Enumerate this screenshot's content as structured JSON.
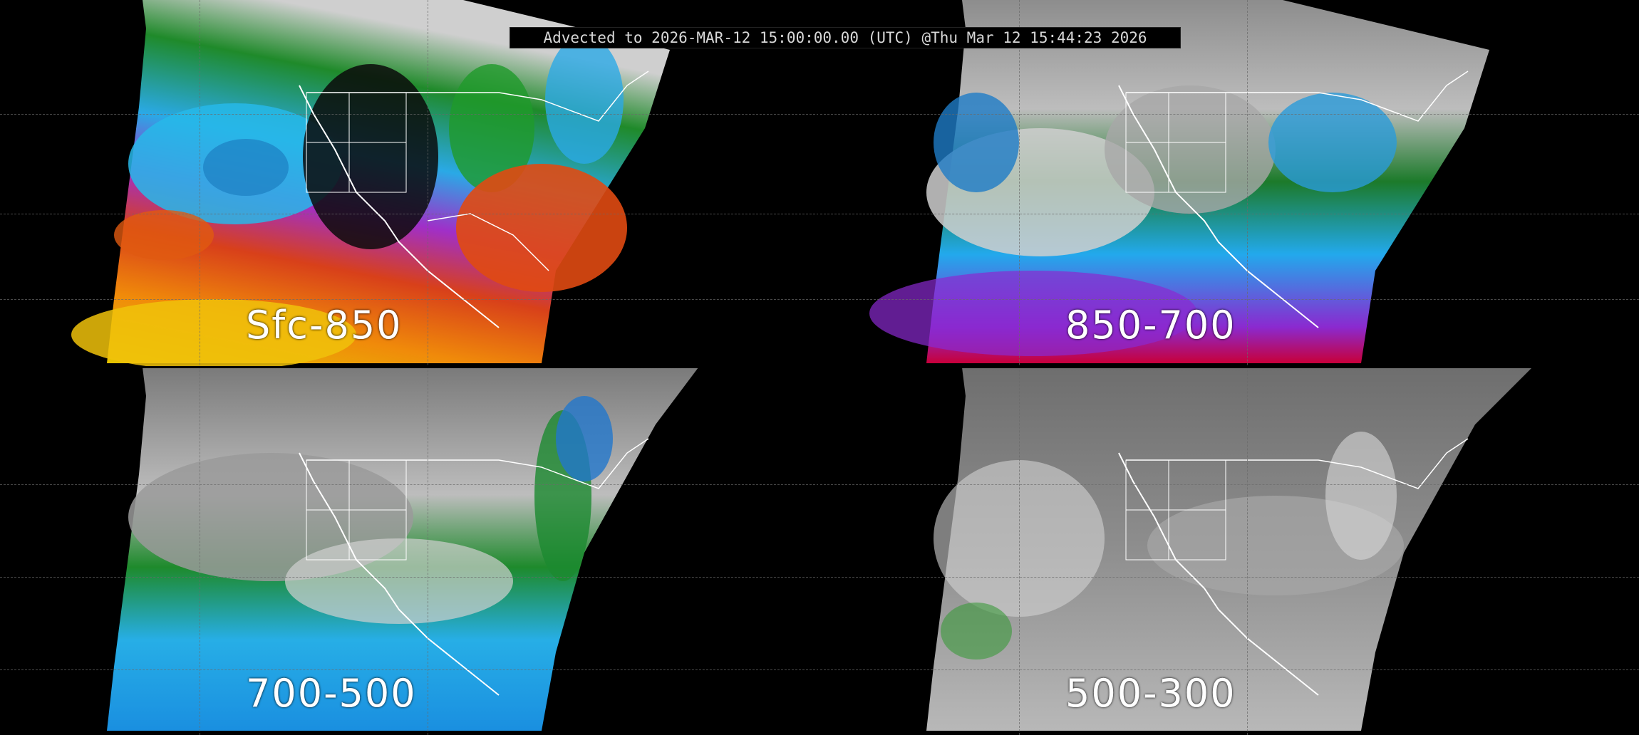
{
  "header": {
    "text": "Advected to 2026-MAR-12 15:00:00.00 (UTC) @Thu Mar 12 15:44:23 2026"
  },
  "panels": [
    {
      "label": "Sfc-850",
      "scheme": "warm"
    },
    {
      "label": "850-700",
      "scheme": "cool"
    },
    {
      "label": "700-500",
      "scheme": "greenblue"
    },
    {
      "label": "500-300",
      "scheme": "gray"
    }
  ],
  "colors": {
    "background": "#000000",
    "coastline": "#ffffff",
    "gridline": "#6a6a6a"
  }
}
